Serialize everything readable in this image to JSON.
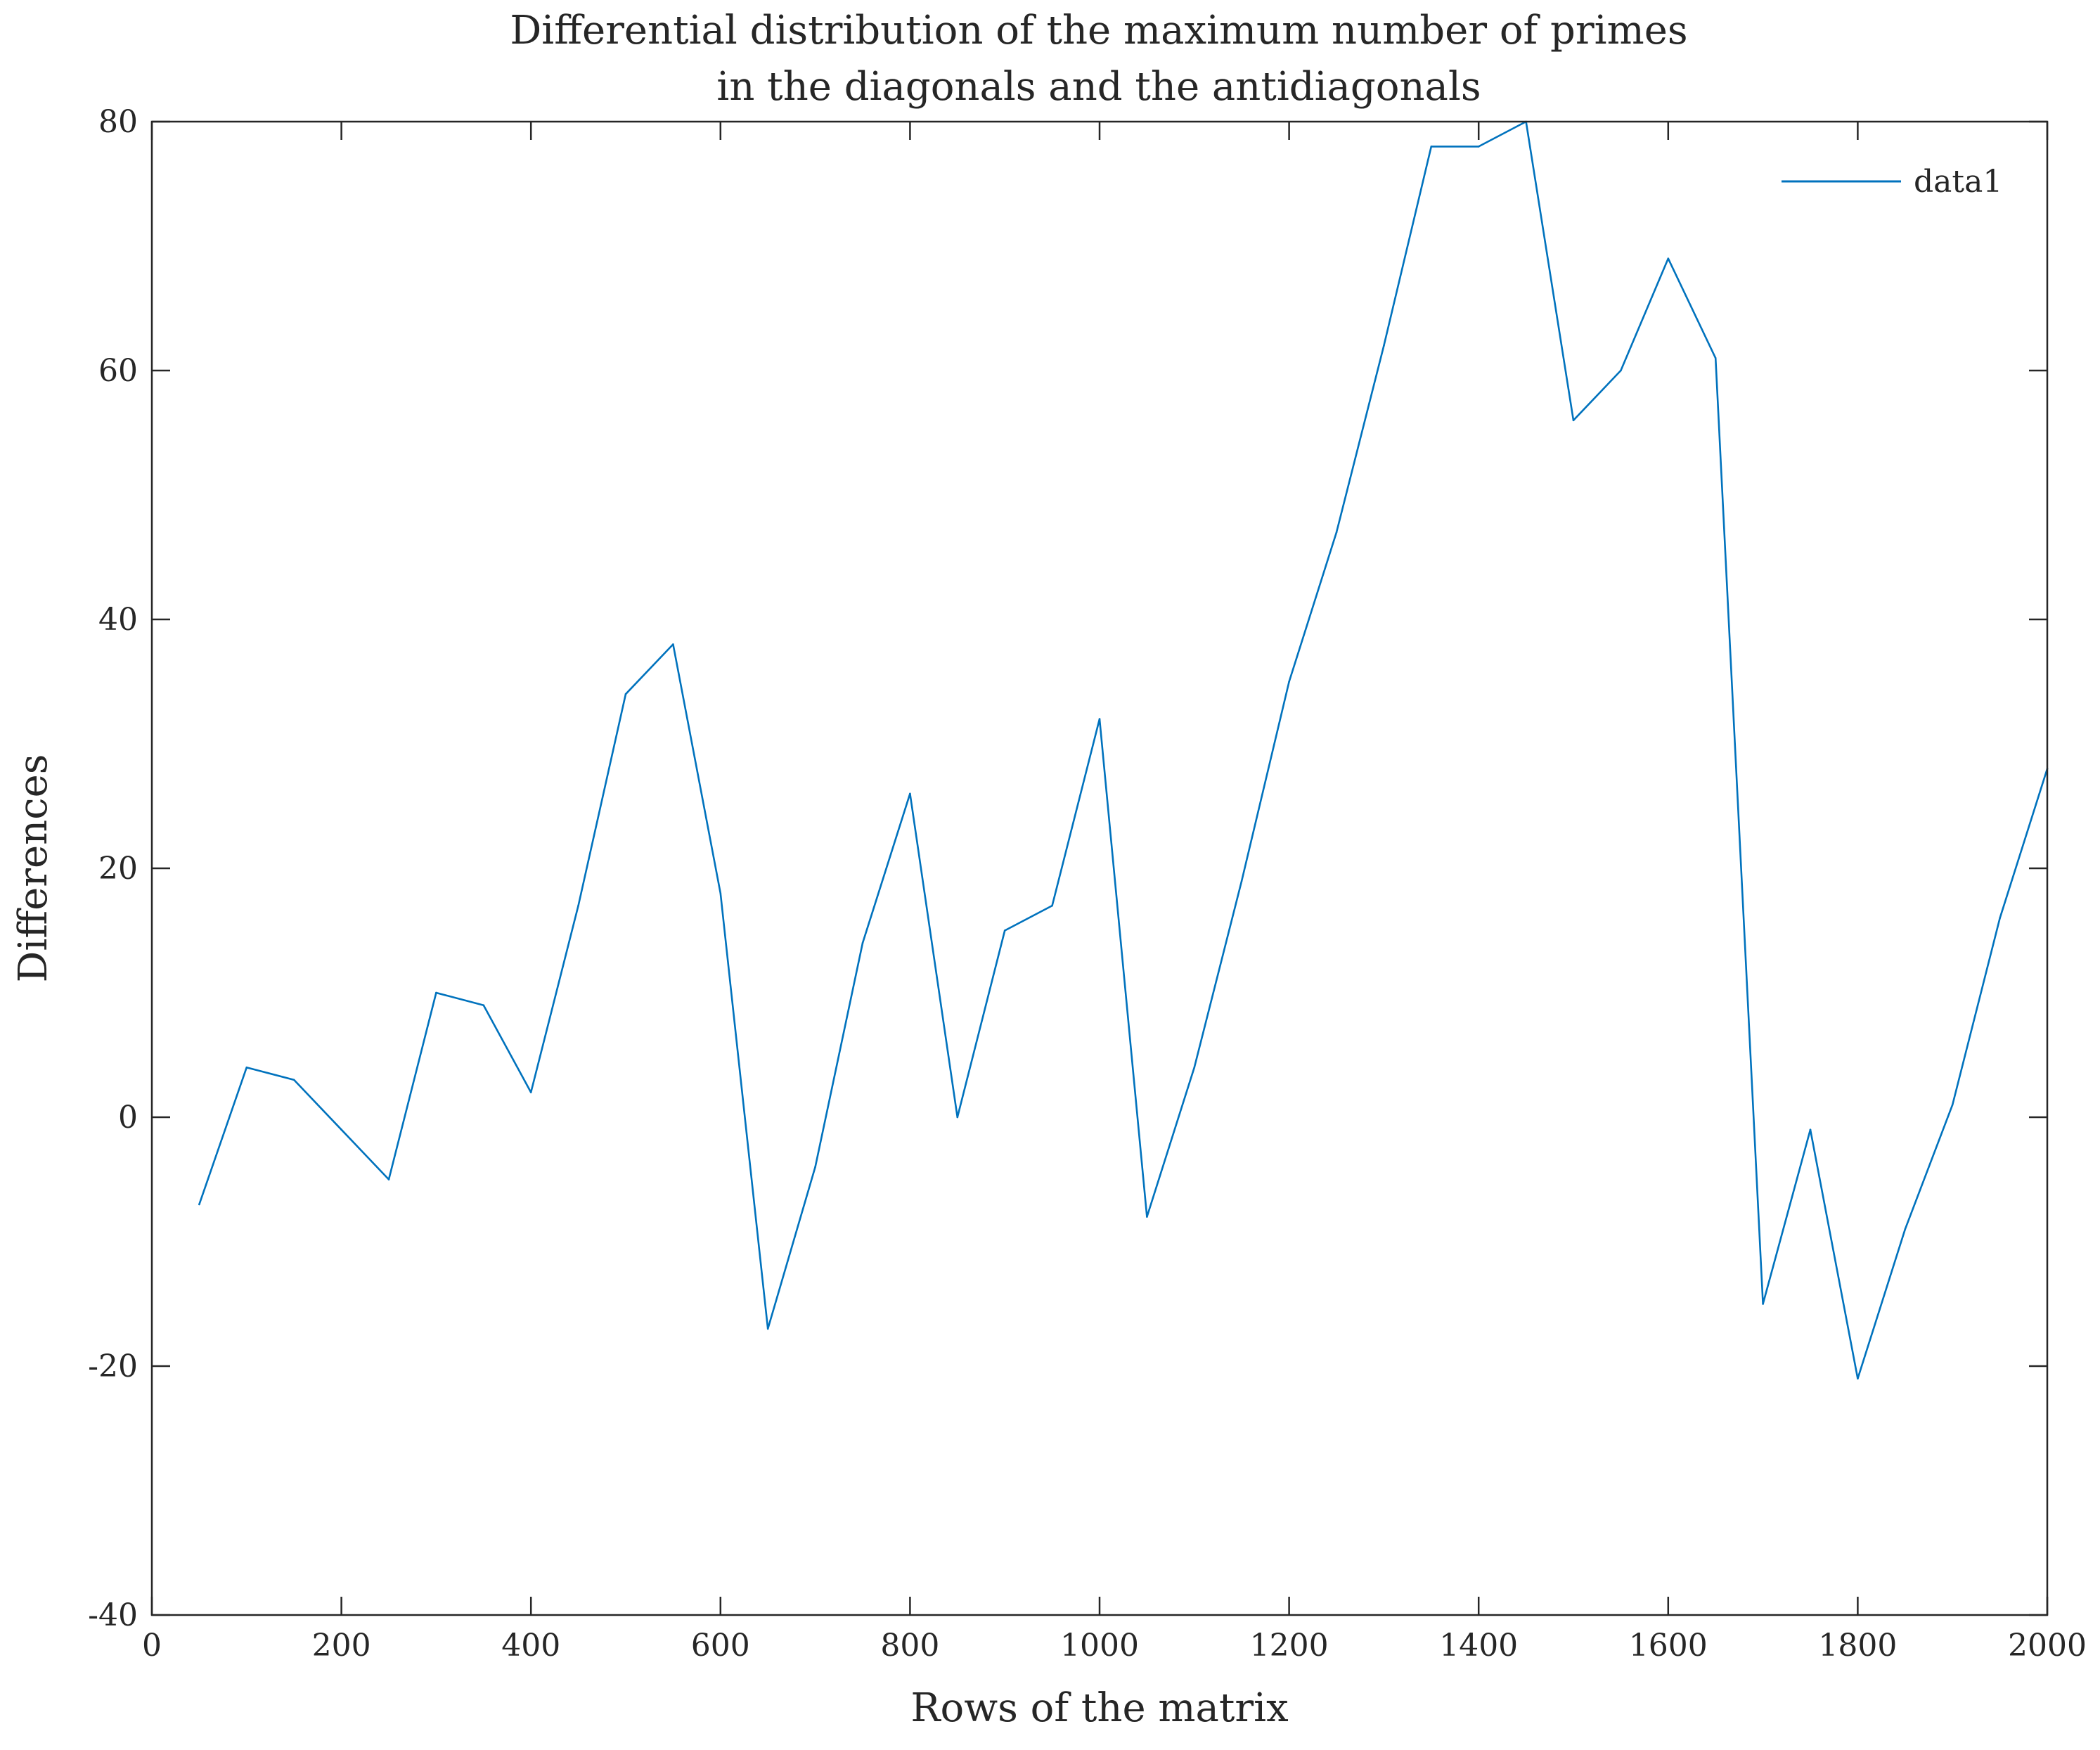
{
  "chart_data": {
    "type": "line",
    "title_lines": [
      "Differential distribution of the maximum number of primes",
      "in the diagonals and the antidiagonals"
    ],
    "xlabel": "Rows of the matrix",
    "ylabel": "Differences",
    "xlim": [
      0,
      2000
    ],
    "ylim": [
      -40,
      80
    ],
    "xticks": [
      0,
      200,
      400,
      600,
      800,
      1000,
      1200,
      1400,
      1600,
      1800,
      2000
    ],
    "yticks": [
      -40,
      -20,
      0,
      20,
      40,
      60,
      80
    ],
    "grid": false,
    "legend_position": "top-right",
    "series": [
      {
        "name": "data1",
        "color": "#0072BD",
        "x": [
          50,
          100,
          150,
          200,
          250,
          300,
          350,
          400,
          450,
          500,
          550,
          600,
          650,
          700,
          750,
          800,
          850,
          900,
          950,
          1000,
          1050,
          1100,
          1150,
          1200,
          1250,
          1300,
          1350,
          1400,
          1450,
          1500,
          1550,
          1600,
          1650,
          1700,
          1750,
          1800,
          1850,
          1900,
          1950,
          2000
        ],
        "y": [
          -7,
          4,
          3,
          -1,
          -5,
          10,
          9,
          2,
          17,
          34,
          38,
          18,
          -17,
          -4,
          14,
          26,
          0,
          15,
          17,
          32,
          -8,
          4,
          19,
          35,
          47,
          62,
          78,
          78,
          80,
          56,
          60,
          69,
          61,
          -15,
          -1,
          -21,
          -9,
          1,
          16,
          28
        ]
      }
    ]
  }
}
